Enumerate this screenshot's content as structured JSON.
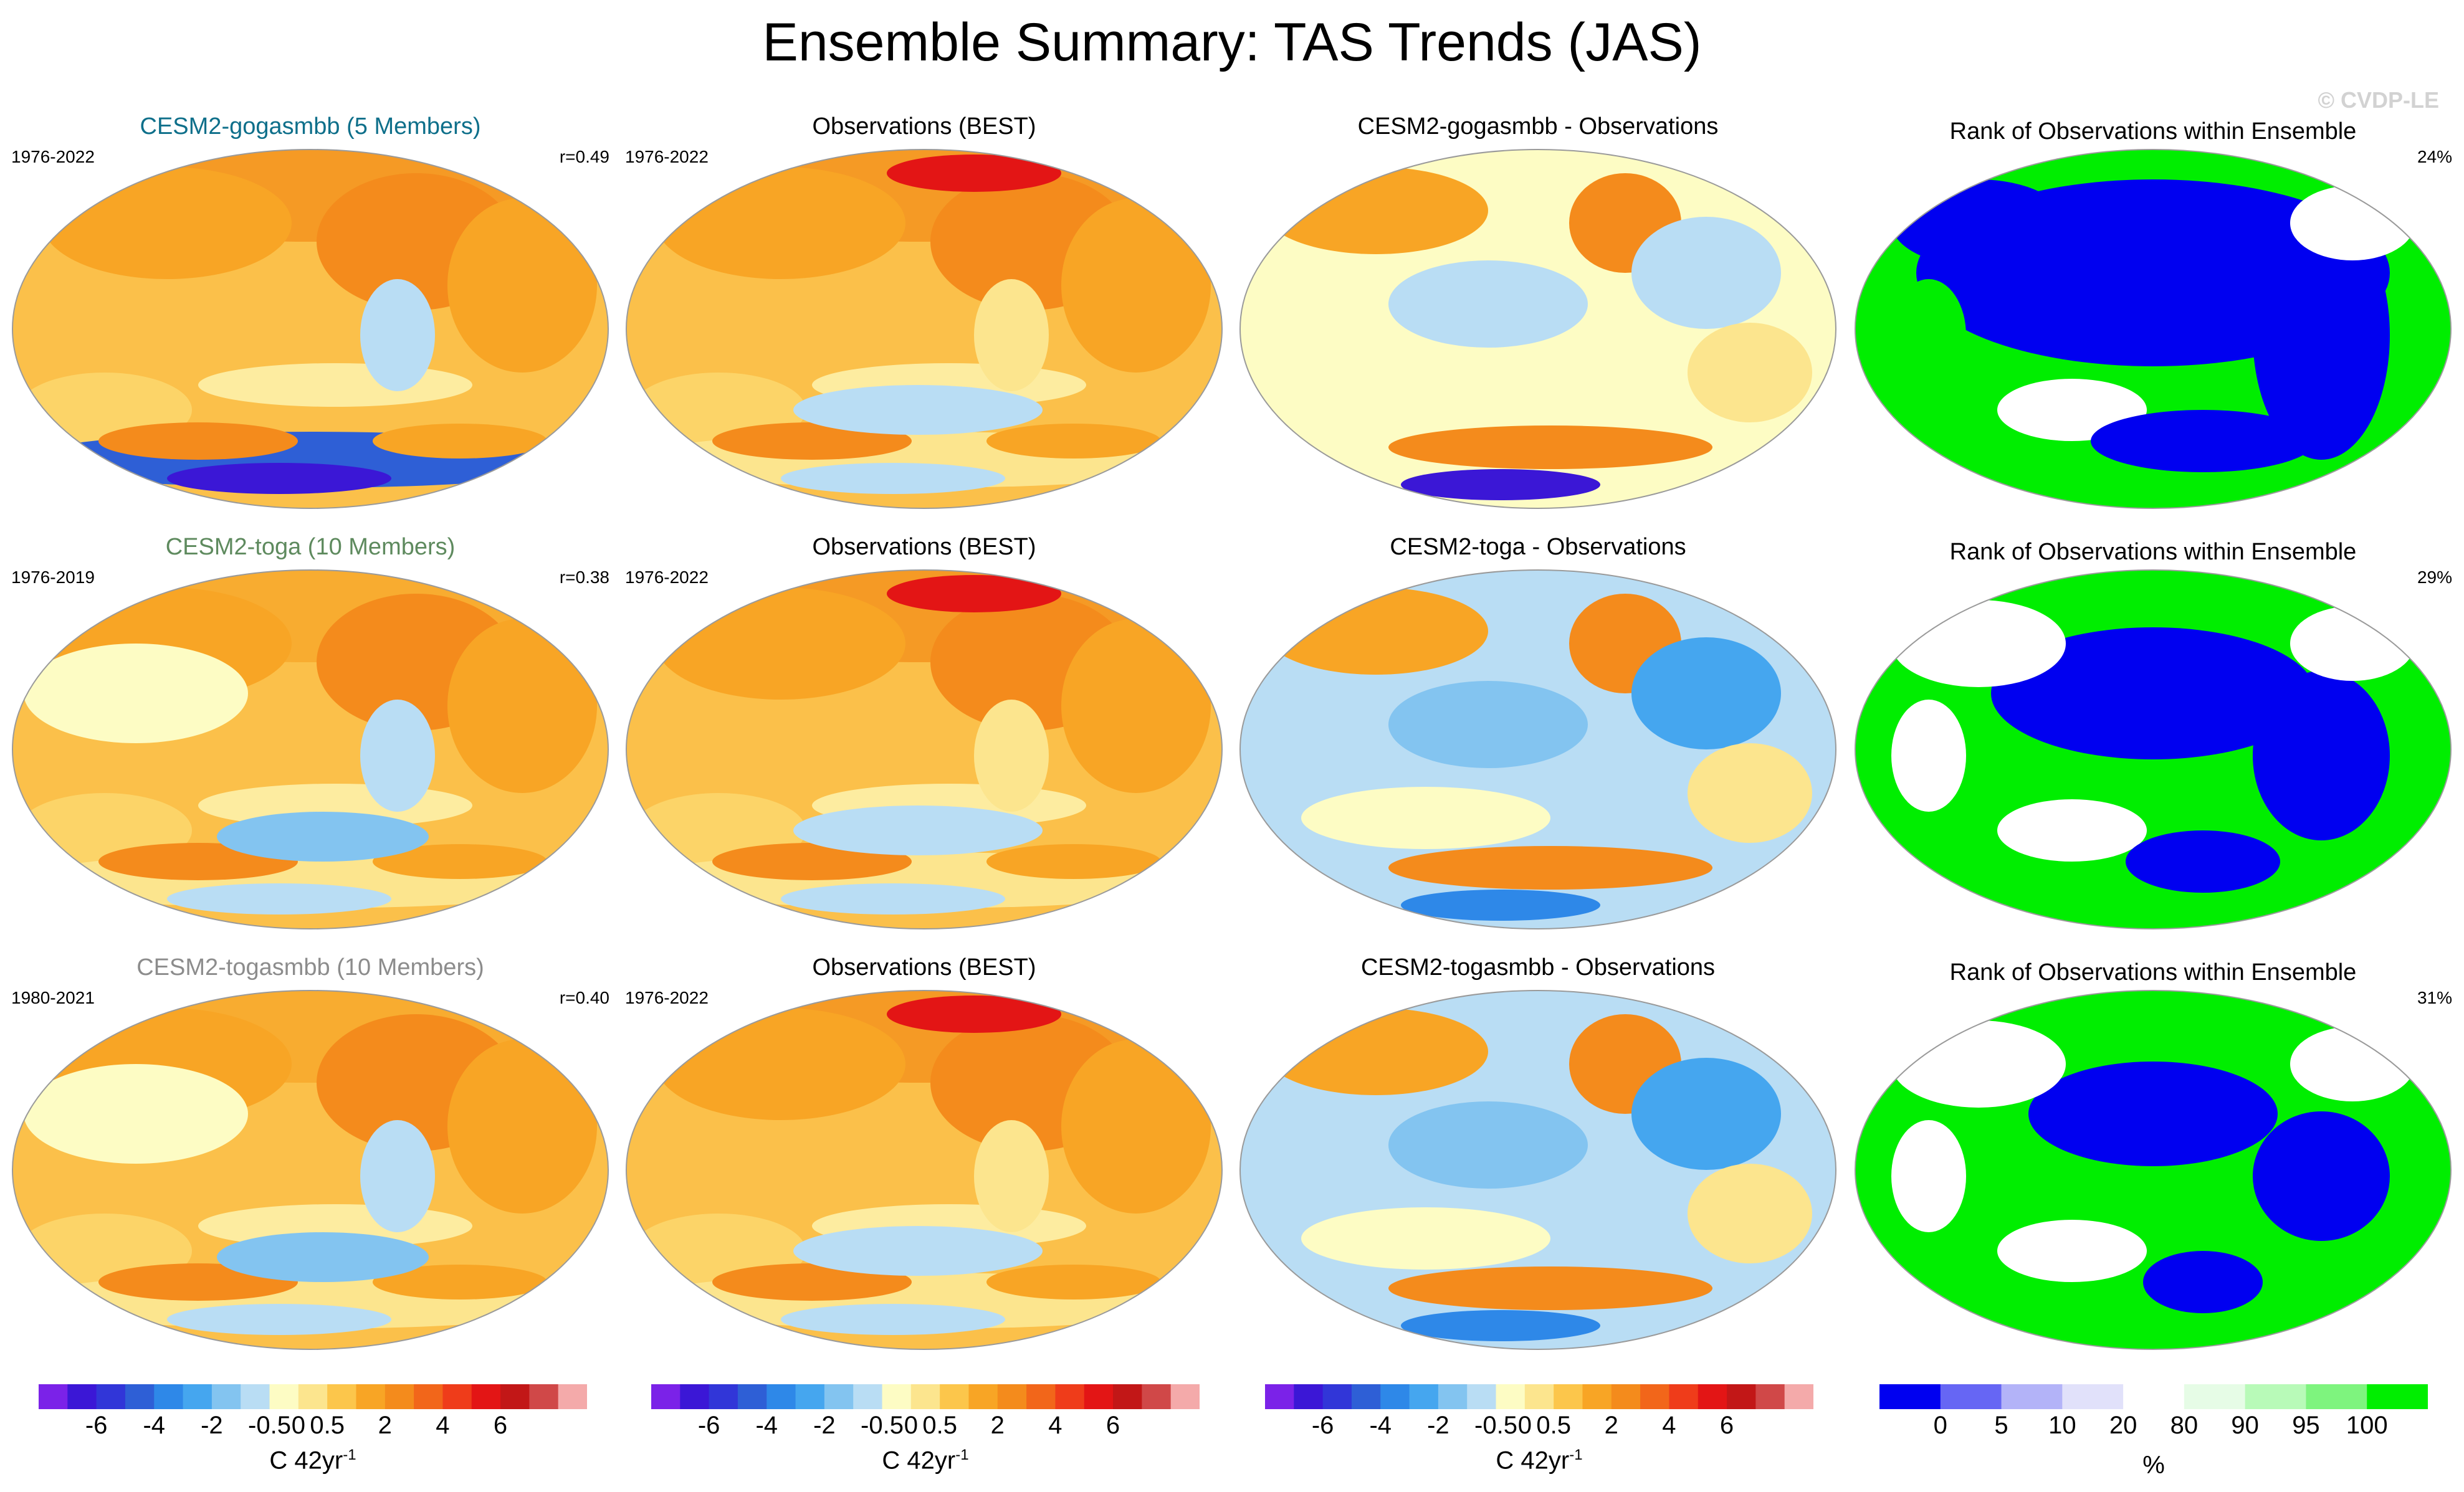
{
  "title": "Ensemble Summary: TAS Trends (JAS)",
  "watermark": "© CVDP-LE",
  "rows": [
    {
      "model": {
        "title": "CESM2-gogasmbb (5 Members)",
        "title_color": "#0e6f8a",
        "years": "1976-2022",
        "r": "r=0.49"
      },
      "obs": {
        "title": "Observations (BEST)",
        "years": "1976-2022"
      },
      "diff": {
        "title": "CESM2-gogasmbb - Observations"
      },
      "rank": {
        "title": "Rank of Observations within Ensemble",
        "percent": "24%"
      }
    },
    {
      "model": {
        "title": "CESM2-toga (10 Members)",
        "title_color": "#5e8a5e",
        "years": "1976-2019",
        "r": "r=0.38"
      },
      "obs": {
        "title": "Observations (BEST)",
        "years": "1976-2022"
      },
      "diff": {
        "title": "CESM2-toga - Observations"
      },
      "rank": {
        "title": "Rank of Observations within Ensemble",
        "percent": "29%"
      }
    },
    {
      "model": {
        "title": "CESM2-togasmbb (10 Members)",
        "title_color": "#8c8c8c",
        "years": "1980-2021",
        "r": "r=0.40"
      },
      "obs": {
        "title": "Observations (BEST)",
        "years": "1976-2022"
      },
      "diff": {
        "title": "CESM2-togasmbb - Observations"
      },
      "rank": {
        "title": "Rank of Observations within Ensemble",
        "percent": "31%"
      }
    }
  ],
  "colorbars": {
    "trend": {
      "colors": [
        "#7b22e8",
        "#3b17d6",
        "#3136d8",
        "#2e5fd6",
        "#2e88e8",
        "#45a6ef",
        "#83c4f0",
        "#b9ddf4",
        "#fdfcc4",
        "#fce58e",
        "#fcc64b",
        "#f8a525",
        "#f48b1c",
        "#f2661a",
        "#ef3c1a",
        "#e31515",
        "#c21717",
        "#d04848",
        "#f4aaaa"
      ],
      "labels": [
        "-6",
        "-4",
        "-2",
        "-0.5",
        "0",
        "0.5",
        "2",
        "4",
        "6"
      ],
      "units": "C 42yr",
      "units_sup": "-1"
    },
    "rank": {
      "colors": [
        "#0000f0",
        "#6666f4",
        "#b3b3f8",
        "#e1e1fa",
        "#ffffff",
        "#e6fce6",
        "#b8fab8",
        "#7ef47e",
        "#00ee00"
      ],
      "labels": [
        "0",
        "5",
        "10",
        "20",
        "80",
        "90",
        "95",
        "100"
      ],
      "units": "%"
    }
  },
  "chart_data": [
    {
      "type": "heatmap",
      "title": "CESM2-gogasmbb (5 Members)",
      "period": "1976-2022",
      "pattern_correlation": 0.49,
      "variable": "TAS trend",
      "units": "C 42yr-1",
      "season": "JAS"
    },
    {
      "type": "heatmap",
      "title": "Observations (BEST)",
      "period": "1976-2022",
      "variable": "TAS trend",
      "units": "C 42yr-1"
    },
    {
      "type": "heatmap",
      "title": "CESM2-gogasmbb - Observations",
      "variable": "TAS trend difference",
      "units": "C 42yr-1"
    },
    {
      "type": "heatmap",
      "title": "Rank of Observations within Ensemble",
      "summary_percent": 24,
      "units": "%"
    },
    {
      "type": "heatmap",
      "title": "CESM2-toga (10 Members)",
      "period": "1976-2019",
      "pattern_correlation": 0.38,
      "variable": "TAS trend",
      "units": "C 42yr-1"
    },
    {
      "type": "heatmap",
      "title": "Observations (BEST)",
      "period": "1976-2022",
      "variable": "TAS trend",
      "units": "C 42yr-1"
    },
    {
      "type": "heatmap",
      "title": "CESM2-toga - Observations",
      "variable": "TAS trend difference",
      "units": "C 42yr-1"
    },
    {
      "type": "heatmap",
      "title": "Rank of Observations within Ensemble",
      "summary_percent": 29,
      "units": "%"
    },
    {
      "type": "heatmap",
      "title": "CESM2-togasmbb (10 Members)",
      "period": "1980-2021",
      "pattern_correlation": 0.4,
      "variable": "TAS trend",
      "units": "C 42yr-1"
    },
    {
      "type": "heatmap",
      "title": "Observations (BEST)",
      "period": "1976-2022",
      "variable": "TAS trend",
      "units": "C 42yr-1"
    },
    {
      "type": "heatmap",
      "title": "CESM2-togasmbb - Observations",
      "variable": "TAS trend difference",
      "units": "C 42yr-1"
    },
    {
      "type": "heatmap",
      "title": "Rank of Observations within Ensemble",
      "summary_percent": 31,
      "units": "%"
    }
  ]
}
